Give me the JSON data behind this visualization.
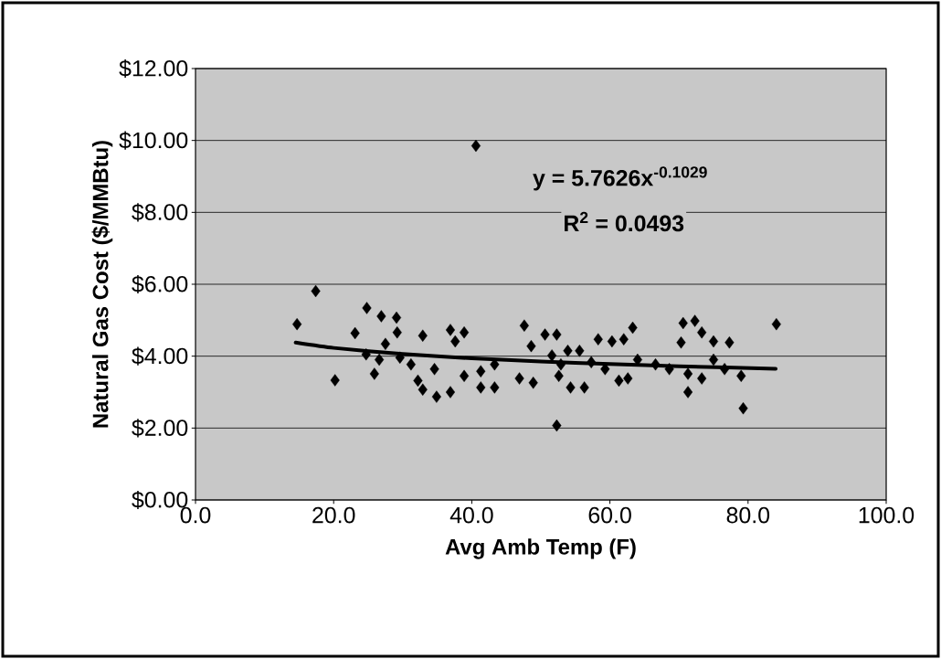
{
  "chart_data": {
    "type": "scatter",
    "xlabel": "Avg Amb Temp (F)",
    "ylabel": "Natural Gas Cost ($/MMBtu)",
    "xlim": [
      0,
      100
    ],
    "ylim": [
      0,
      12
    ],
    "xticks": [
      {
        "value": 0,
        "label": "0.0"
      },
      {
        "value": 20,
        "label": "20.0"
      },
      {
        "value": 40,
        "label": "40.0"
      },
      {
        "value": 60,
        "label": "60.0"
      },
      {
        "value": 80,
        "label": "80.0"
      },
      {
        "value": 100,
        "label": "100.0"
      }
    ],
    "yticks": [
      {
        "value": 0,
        "label": "$0.00"
      },
      {
        "value": 2,
        "label": "$2.00"
      },
      {
        "value": 4,
        "label": "$4.00"
      },
      {
        "value": 6,
        "label": "$6.00"
      },
      {
        "value": 8,
        "label": "$8.00"
      },
      {
        "value": 10,
        "label": "$10.00"
      },
      {
        "value": 12,
        "label": "$12.00"
      }
    ],
    "grid": "y",
    "marker": "diamond",
    "series": [
      {
        "color": "#000000",
        "x": [
          14.7,
          17.4,
          20.2,
          23.1,
          24.8,
          24.7,
          25.9,
          26.9,
          29.1,
          29.2,
          27.5,
          26.6,
          29.6,
          31.2,
          32.9,
          32.2,
          32.9,
          34.9,
          34.6,
          36.9,
          36.9,
          38.9,
          37.6,
          38.9,
          41.3,
          41.3,
          43.3,
          43.3,
          40.6,
          47.6,
          48.6,
          46.9,
          48.9,
          50.6,
          52.3,
          51.6,
          52.9,
          52.6,
          54.3,
          56.3,
          52.3,
          53.9,
          55.6,
          58.3,
          60.3,
          63.3,
          62.0,
          59.3,
          61.3,
          62.6,
          64.0,
          66.6,
          68.6,
          70.6,
          72.3,
          73.3,
          70.3,
          75.0,
          77.3,
          71.3,
          73.3,
          71.3,
          75.0,
          76.6,
          79.0,
          79.3,
          84.1,
          57.3
        ],
        "values": [
          4.89,
          5.81,
          3.33,
          4.64,
          5.34,
          4.05,
          3.51,
          5.11,
          5.07,
          4.66,
          4.34,
          3.9,
          3.96,
          3.77,
          4.57,
          3.32,
          3.07,
          2.87,
          3.64,
          3.0,
          4.73,
          4.66,
          4.41,
          3.45,
          3.58,
          3.13,
          3.13,
          3.77,
          9.85,
          4.85,
          4.28,
          3.38,
          3.26,
          4.6,
          4.6,
          4.02,
          3.77,
          3.45,
          3.13,
          3.13,
          2.07,
          4.15,
          4.15,
          4.47,
          4.41,
          4.79,
          4.47,
          3.64,
          3.32,
          3.38,
          3.9,
          3.77,
          3.64,
          4.92,
          4.98,
          4.66,
          4.38,
          4.41,
          4.38,
          3.51,
          3.38,
          3.0,
          3.9,
          3.64,
          3.45,
          2.55,
          4.89,
          3.83
        ]
      },
      {
        "type": "line",
        "marker": "none",
        "color": "#000000",
        "x": [
          14.5,
          20,
          30,
          40,
          50,
          60,
          70,
          84
        ],
        "values": [
          4.38,
          4.23,
          4.06,
          3.94,
          3.85,
          3.78,
          3.72,
          3.65
        ]
      }
    ],
    "annotations": [
      "y = 5.7626x$^{-0.1029}$",
      "R$^{2}$ = 0.0493"
    ]
  }
}
